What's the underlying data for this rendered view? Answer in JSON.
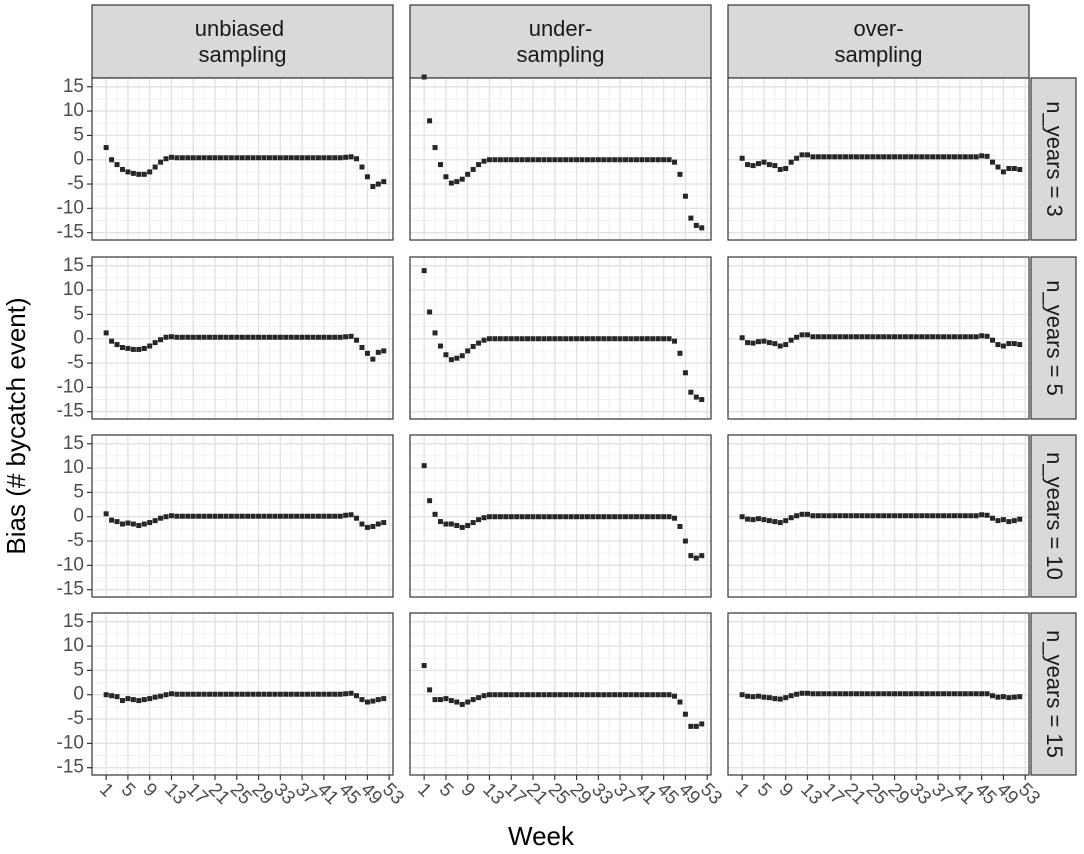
{
  "chart_data": {
    "type": "scatter",
    "xlabel": "Week",
    "ylabel": "Bias (# bycatch event)",
    "columns": [
      "unbiased sampling",
      "under-sampling",
      "over-sampling"
    ],
    "rows": [
      "n_years = 3",
      "n_years = 5",
      "n_years = 10",
      "n_years = 15"
    ],
    "color": "#262626",
    "grid": true,
    "x": [
      1,
      2,
      3,
      4,
      5,
      6,
      7,
      8,
      9,
      10,
      11,
      12,
      13,
      14,
      15,
      16,
      17,
      18,
      19,
      20,
      21,
      22,
      23,
      24,
      25,
      26,
      27,
      28,
      29,
      30,
      31,
      32,
      33,
      34,
      35,
      36,
      37,
      38,
      39,
      40,
      41,
      42,
      43,
      44,
      45,
      46,
      47,
      48,
      49,
      50,
      51,
      52
    ],
    "xlim": [
      -1.6,
      53.7
    ],
    "xticks": [
      1,
      5,
      9,
      13,
      17,
      21,
      25,
      29,
      33,
      37,
      41,
      45,
      49,
      53
    ],
    "ylim": [
      -16.5,
      16.8
    ],
    "yticks": [
      -15,
      -10,
      -5,
      0,
      5,
      10,
      15
    ],
    "panels": [
      [
        [
          2.5,
          0,
          -1,
          -2,
          -2.5,
          -2.8,
          -3,
          -3,
          -2.5,
          -1.5,
          -0.5,
          0.2,
          0.5,
          0.4,
          0.4,
          0.4,
          0.4,
          0.4,
          0.4,
          0.4,
          0.4,
          0.4,
          0.4,
          0.4,
          0.4,
          0.4,
          0.4,
          0.4,
          0.4,
          0.4,
          0.4,
          0.4,
          0.4,
          0.4,
          0.4,
          0.4,
          0.4,
          0.4,
          0.4,
          0.4,
          0.4,
          0.4,
          0.4,
          0.4,
          0.5,
          0.6,
          0.2,
          -1.5,
          -3.5,
          -5.5,
          -5,
          -4.5
        ],
        [
          17,
          8,
          2.5,
          -1,
          -3.5,
          -4.8,
          -4.5,
          -4,
          -3,
          -2,
          -1,
          -0.3,
          0,
          0,
          0,
          0,
          0,
          0,
          0,
          0,
          0,
          0,
          0,
          0,
          0,
          0,
          0,
          0,
          0,
          0,
          0,
          0,
          0,
          0,
          0,
          0,
          0,
          0,
          0,
          0,
          0,
          0,
          0,
          0,
          0,
          0,
          -0.5,
          -3,
          -7.5,
          -12,
          -13.5,
          -14
        ],
        [
          0.3,
          -1,
          -1.2,
          -0.8,
          -0.5,
          -1,
          -1.2,
          -2,
          -1.8,
          -0.5,
          0.3,
          1,
          1,
          0.6,
          0.6,
          0.6,
          0.6,
          0.6,
          0.6,
          0.6,
          0.6,
          0.6,
          0.6,
          0.6,
          0.6,
          0.6,
          0.6,
          0.6,
          0.6,
          0.6,
          0.6,
          0.6,
          0.6,
          0.6,
          0.6,
          0.6,
          0.6,
          0.6,
          0.6,
          0.6,
          0.6,
          0.6,
          0.6,
          0.6,
          0.8,
          0.7,
          -0.5,
          -1.5,
          -2.5,
          -1.8,
          -1.8,
          -2
        ]
      ],
      [
        [
          1.2,
          -0.5,
          -1.2,
          -1.8,
          -2,
          -2.2,
          -2.2,
          -2,
          -1.5,
          -0.8,
          -0.2,
          0.3,
          0.4,
          0.3,
          0.3,
          0.3,
          0.3,
          0.3,
          0.3,
          0.3,
          0.3,
          0.3,
          0.3,
          0.3,
          0.3,
          0.3,
          0.3,
          0.3,
          0.3,
          0.3,
          0.3,
          0.3,
          0.3,
          0.3,
          0.3,
          0.3,
          0.3,
          0.3,
          0.3,
          0.3,
          0.3,
          0.3,
          0.3,
          0.3,
          0.4,
          0.5,
          -0.3,
          -1.8,
          -3,
          -4.2,
          -2.8,
          -2.5
        ],
        [
          14,
          5.5,
          1.2,
          -1.5,
          -3.3,
          -4.3,
          -4,
          -3.5,
          -2.5,
          -1.6,
          -0.9,
          -0.3,
          0,
          0,
          0,
          0,
          0,
          0,
          0,
          0,
          0,
          0,
          0,
          0,
          0,
          0,
          0,
          0,
          0,
          0,
          0,
          0,
          0,
          0,
          0,
          0,
          0,
          0,
          0,
          0,
          0,
          0,
          0,
          0,
          0,
          0,
          -0.5,
          -3,
          -7,
          -11,
          -12,
          -12.5
        ],
        [
          0.2,
          -0.8,
          -0.9,
          -0.6,
          -0.5,
          -0.8,
          -1,
          -1.5,
          -1.2,
          -0.3,
          0.3,
          0.8,
          0.8,
          0.4,
          0.4,
          0.4,
          0.4,
          0.4,
          0.4,
          0.4,
          0.4,
          0.4,
          0.4,
          0.4,
          0.4,
          0.4,
          0.4,
          0.4,
          0.4,
          0.4,
          0.4,
          0.4,
          0.4,
          0.4,
          0.4,
          0.4,
          0.4,
          0.4,
          0.4,
          0.4,
          0.4,
          0.4,
          0.4,
          0.4,
          0.6,
          0.5,
          -0.3,
          -1.2,
          -1.5,
          -1,
          -1,
          -1.2
        ]
      ],
      [
        [
          0.6,
          -0.7,
          -1,
          -1.5,
          -1.3,
          -1.5,
          -1.8,
          -1.5,
          -1.2,
          -0.8,
          -0.3,
          0,
          0.2,
          0.1,
          0.1,
          0.1,
          0.1,
          0.1,
          0.1,
          0.1,
          0.1,
          0.1,
          0.1,
          0.1,
          0.1,
          0.1,
          0.1,
          0.1,
          0.1,
          0.1,
          0.1,
          0.1,
          0.1,
          0.1,
          0.1,
          0.1,
          0.1,
          0.1,
          0.1,
          0.1,
          0.1,
          0.1,
          0.1,
          0.1,
          0.3,
          0.4,
          -0.3,
          -1.5,
          -2.2,
          -2,
          -1.5,
          -1.2
        ],
        [
          10.5,
          3.3,
          0.5,
          -1,
          -1.5,
          -1.5,
          -1.8,
          -2.2,
          -1.8,
          -1.2,
          -0.6,
          -0.2,
          0,
          0,
          0,
          0,
          0,
          0,
          0,
          0,
          0,
          0,
          0,
          0,
          0,
          0,
          0,
          0,
          0,
          0,
          0,
          0,
          0,
          0,
          0,
          0,
          0,
          0,
          0,
          0,
          0,
          0,
          0,
          0,
          0,
          0,
          -0.3,
          -2,
          -5,
          -8,
          -8.5,
          -8
        ],
        [
          0,
          -0.5,
          -0.6,
          -0.4,
          -0.6,
          -0.8,
          -1,
          -1.2,
          -0.8,
          -0.2,
          0.2,
          0.5,
          0.5,
          0.2,
          0.2,
          0.2,
          0.2,
          0.2,
          0.2,
          0.2,
          0.2,
          0.2,
          0.2,
          0.2,
          0.2,
          0.2,
          0.2,
          0.2,
          0.2,
          0.2,
          0.2,
          0.2,
          0.2,
          0.2,
          0.2,
          0.2,
          0.2,
          0.2,
          0.2,
          0.2,
          0.2,
          0.2,
          0.2,
          0.2,
          0.4,
          0.3,
          -0.3,
          -0.8,
          -0.6,
          -1,
          -0.8,
          -0.5
        ]
      ],
      [
        [
          0,
          -0.2,
          -0.4,
          -1.2,
          -0.8,
          -1,
          -1.2,
          -1,
          -0.8,
          -0.5,
          -0.3,
          0,
          0.2,
          0.1,
          0.1,
          0.1,
          0.1,
          0.1,
          0.1,
          0.1,
          0.1,
          0.1,
          0.1,
          0.1,
          0.1,
          0.1,
          0.1,
          0.1,
          0.1,
          0.1,
          0.1,
          0.1,
          0.1,
          0.1,
          0.1,
          0.1,
          0.1,
          0.1,
          0.1,
          0.1,
          0.1,
          0.1,
          0.1,
          0.1,
          0.2,
          0.3,
          -0.2,
          -1,
          -1.5,
          -1.3,
          -1,
          -0.8
        ],
        [
          6,
          1,
          -1,
          -1,
          -0.8,
          -1.2,
          -1.5,
          -2,
          -1.5,
          -1,
          -0.6,
          -0.2,
          0,
          0,
          0,
          0,
          0,
          0,
          0,
          0,
          0,
          0,
          0,
          0,
          0,
          0,
          0,
          0,
          0,
          0,
          0,
          0,
          0,
          0,
          0,
          0,
          0,
          0,
          0,
          0,
          0,
          0,
          0,
          0,
          0,
          0,
          -0.3,
          -1.5,
          -4,
          -6.5,
          -6.5,
          -6
        ],
        [
          0,
          -0.3,
          -0.4,
          -0.3,
          -0.5,
          -0.6,
          -0.8,
          -0.9,
          -0.6,
          -0.2,
          0.1,
          0.3,
          0.3,
          0.2,
          0.2,
          0.2,
          0.2,
          0.2,
          0.2,
          0.2,
          0.2,
          0.2,
          0.2,
          0.2,
          0.2,
          0.2,
          0.2,
          0.2,
          0.2,
          0.2,
          0.2,
          0.2,
          0.2,
          0.2,
          0.2,
          0.2,
          0.2,
          0.2,
          0.2,
          0.2,
          0.2,
          0.2,
          0.2,
          0.2,
          0.2,
          0.2,
          -0.2,
          -0.5,
          -0.4,
          -0.6,
          -0.5,
          -0.4
        ]
      ]
    ]
  }
}
